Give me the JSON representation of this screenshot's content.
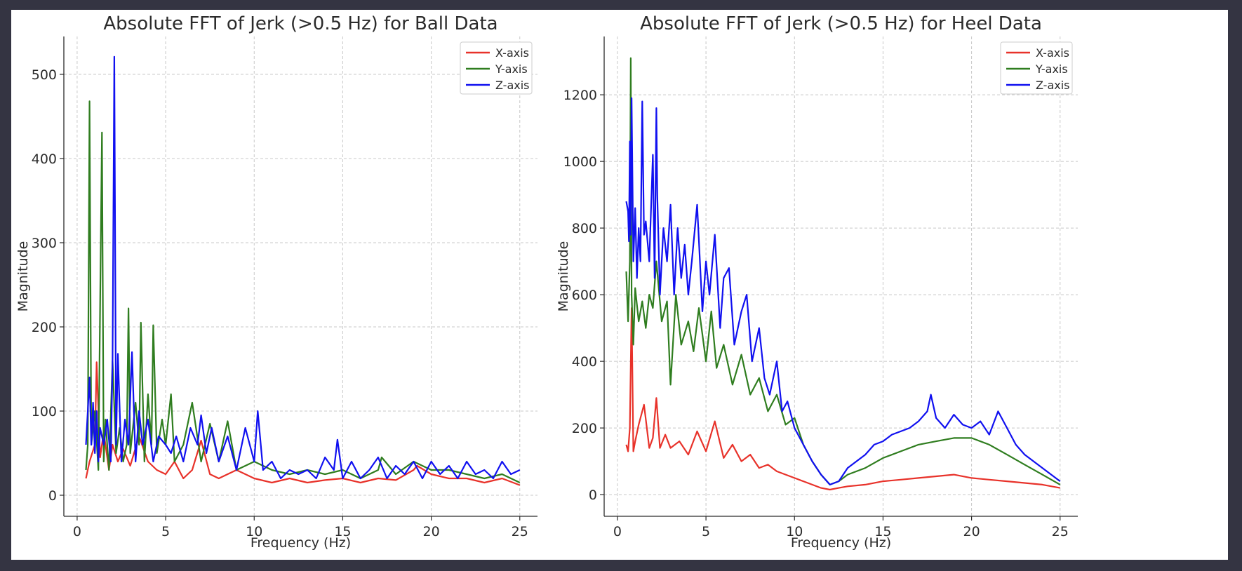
{
  "colors": {
    "x_axis": "#e8322a",
    "y_axis": "#2f7d1f",
    "z_axis": "#1010f0"
  },
  "chart_data": [
    {
      "type": "line",
      "title": "Absolute FFT of Jerk (>0.5 Hz) for Ball Data",
      "xlabel": "Frequency (Hz)",
      "ylabel": "Magnitude",
      "xlim": [
        -0.75,
        26.0
      ],
      "ylim": [
        -25,
        545
      ],
      "xticks": [
        0,
        5,
        10,
        15,
        20,
        25
      ],
      "yticks": [
        0,
        100,
        200,
        300,
        400,
        500
      ],
      "grid": true,
      "legend": "top-right",
      "series": [
        {
          "name": "X-axis",
          "color": "#e8322a",
          "x": [
            0.5,
            0.7,
            1.0,
            1.1,
            1.3,
            1.5,
            1.8,
            2.0,
            2.3,
            2.6,
            3.0,
            3.5,
            4.0,
            4.5,
            5.0,
            5.5,
            6.0,
            6.5,
            7.0,
            7.5,
            8.0,
            9.0,
            10.0,
            11.0,
            12.0,
            13.0,
            14.0,
            15.0,
            16.0,
            17.0,
            18.0,
            19.0,
            19.2,
            20.0,
            21.0,
            22.0,
            23.0,
            24.0,
            25.0
          ],
          "y": [
            20,
            40,
            60,
            158,
            45,
            75,
            30,
            60,
            40,
            55,
            35,
            70,
            40,
            30,
            25,
            40,
            20,
            30,
            65,
            25,
            20,
            30,
            20,
            15,
            20,
            15,
            18,
            20,
            15,
            20,
            18,
            30,
            35,
            25,
            20,
            20,
            15,
            20,
            12
          ]
        },
        {
          "name": "Y-axis",
          "color": "#2f7d1f",
          "x": [
            0.5,
            0.6,
            0.7,
            0.8,
            1.0,
            1.2,
            1.4,
            1.5,
            1.6,
            1.8,
            2.0,
            2.2,
            2.4,
            2.6,
            2.8,
            2.9,
            3.0,
            3.3,
            3.5,
            3.6,
            3.8,
            4.0,
            4.2,
            4.3,
            4.5,
            4.8,
            5.0,
            5.3,
            5.5,
            6.0,
            6.5,
            7.0,
            7.5,
            8.0,
            8.5,
            9.0,
            10.0,
            11.0,
            12.0,
            13.0,
            14.0,
            15.0,
            16.0,
            17.0,
            17.2,
            18.0,
            19.0,
            20.0,
            21.0,
            22.0,
            23.0,
            24.0,
            25.0
          ],
          "y": [
            30,
            60,
            468,
            60,
            100,
            30,
            431,
            40,
            90,
            30,
            160,
            50,
            80,
            40,
            60,
            222,
            50,
            110,
            60,
            205,
            40,
            120,
            60,
            202,
            50,
            90,
            60,
            120,
            40,
            60,
            110,
            40,
            85,
            40,
            88,
            30,
            40,
            30,
            25,
            30,
            25,
            30,
            20,
            30,
            45,
            25,
            40,
            30,
            30,
            25,
            20,
            25,
            15
          ]
        },
        {
          "name": "Z-axis",
          "color": "#1010f0",
          "x": [
            0.5,
            0.6,
            0.7,
            0.8,
            0.9,
            1.0,
            1.1,
            1.2,
            1.3,
            1.5,
            1.7,
            1.9,
            2.0,
            2.1,
            2.2,
            2.3,
            2.5,
            2.7,
            2.9,
            3.1,
            3.3,
            3.5,
            3.7,
            4.0,
            4.3,
            4.6,
            5.0,
            5.3,
            5.6,
            6.0,
            6.4,
            6.8,
            7.0,
            7.3,
            7.6,
            8.0,
            8.5,
            9.0,
            9.5,
            10.0,
            10.2,
            10.5,
            11.0,
            11.5,
            12.0,
            12.5,
            13.0,
            13.5,
            14.0,
            14.5,
            14.7,
            15.0,
            15.5,
            16.0,
            16.5,
            17.0,
            17.5,
            18.0,
            18.5,
            19.0,
            19.5,
            20.0,
            20.5,
            21.0,
            21.5,
            22.0,
            22.5,
            23.0,
            23.5,
            24.0,
            24.5,
            25.0
          ],
          "y": [
            60,
            100,
            140,
            60,
            110,
            50,
            100,
            40,
            80,
            60,
            90,
            40,
            160,
            521,
            60,
            168,
            40,
            90,
            60,
            170,
            40,
            100,
            60,
            90,
            40,
            70,
            60,
            50,
            70,
            40,
            80,
            60,
            95,
            50,
            80,
            40,
            70,
            30,
            80,
            40,
            100,
            30,
            40,
            20,
            30,
            25,
            30,
            20,
            45,
            30,
            66,
            20,
            40,
            20,
            30,
            45,
            20,
            35,
            25,
            40,
            20,
            40,
            25,
            35,
            20,
            40,
            25,
            30,
            20,
            40,
            25,
            30
          ]
        }
      ]
    },
    {
      "type": "line",
      "title": "Absolute FFT of Jerk (>0.5 Hz) for Heel Data",
      "xlabel": "Frequency (Hz)",
      "ylabel": "Magnitude",
      "xlim": [
        -0.75,
        26.0
      ],
      "ylim": [
        -65,
        1375
      ],
      "xticks": [
        0,
        5,
        10,
        15,
        20,
        25
      ],
      "yticks": [
        0,
        200,
        400,
        600,
        800,
        1000,
        1200
      ],
      "grid": true,
      "legend": "top-right",
      "series": [
        {
          "name": "X-axis",
          "color": "#e8322a",
          "x": [
            0.5,
            0.6,
            0.7,
            0.8,
            0.9,
            1.0,
            1.2,
            1.5,
            1.8,
            2.0,
            2.2,
            2.4,
            2.7,
            3.0,
            3.5,
            4.0,
            4.5,
            5.0,
            5.5,
            6.0,
            6.5,
            7.0,
            7.5,
            8.0,
            8.5,
            9.0,
            9.5,
            10.0,
            10.5,
            11.0,
            11.5,
            12.0,
            12.5,
            13.0,
            14.0,
            15.0,
            16.0,
            17.0,
            18.0,
            19.0,
            20.0,
            21.0,
            22.0,
            23.0,
            24.0,
            25.0
          ],
          "y": [
            150,
            130,
            200,
            560,
            130,
            160,
            210,
            270,
            140,
            170,
            290,
            140,
            180,
            140,
            160,
            120,
            190,
            130,
            220,
            110,
            150,
            100,
            120,
            80,
            90,
            70,
            60,
            50,
            40,
            30,
            20,
            15,
            20,
            25,
            30,
            40,
            45,
            50,
            55,
            60,
            50,
            45,
            40,
            35,
            30,
            20
          ]
        },
        {
          "name": "Y-axis",
          "color": "#2f7d1f",
          "x": [
            0.5,
            0.6,
            0.7,
            0.75,
            0.8,
            0.9,
            1.0,
            1.2,
            1.4,
            1.6,
            1.8,
            2.0,
            2.2,
            2.5,
            2.8,
            3.0,
            3.3,
            3.6,
            4.0,
            4.3,
            4.6,
            5.0,
            5.3,
            5.6,
            6.0,
            6.5,
            7.0,
            7.5,
            8.0,
            8.5,
            9.0,
            9.5,
            10.0,
            10.5,
            11.0,
            11.5,
            12.0,
            12.5,
            13.0,
            13.5,
            14.0,
            15.0,
            16.0,
            17.0,
            18.0,
            19.0,
            20.0,
            21.0,
            22.0,
            23.0,
            24.0,
            25.0
          ],
          "y": [
            670,
            520,
            700,
            1310,
            600,
            450,
            620,
            520,
            580,
            500,
            600,
            560,
            700,
            520,
            580,
            330,
            600,
            450,
            520,
            430,
            560,
            400,
            550,
            380,
            450,
            330,
            420,
            300,
            350,
            250,
            300,
            210,
            230,
            150,
            100,
            60,
            30,
            40,
            60,
            70,
            80,
            110,
            130,
            150,
            160,
            170,
            170,
            150,
            120,
            90,
            60,
            30
          ]
        },
        {
          "name": "Z-axis",
          "color": "#1010f0",
          "x": [
            0.5,
            0.6,
            0.65,
            0.7,
            0.75,
            0.8,
            0.9,
            1.0,
            1.1,
            1.2,
            1.3,
            1.4,
            1.5,
            1.6,
            1.8,
            2.0,
            2.1,
            2.2,
            2.25,
            2.4,
            2.6,
            2.8,
            3.0,
            3.2,
            3.4,
            3.6,
            3.8,
            4.0,
            4.2,
            4.5,
            4.8,
            5.0,
            5.2,
            5.5,
            5.8,
            6.0,
            6.3,
            6.6,
            7.0,
            7.3,
            7.6,
            8.0,
            8.3,
            8.6,
            9.0,
            9.3,
            9.6,
            10.0,
            10.5,
            11.0,
            11.5,
            12.0,
            12.5,
            13.0,
            13.5,
            14.0,
            14.5,
            15.0,
            15.5,
            16.0,
            16.5,
            17.0,
            17.5,
            17.7,
            18.0,
            18.5,
            19.0,
            19.5,
            20.0,
            20.5,
            21.0,
            21.5,
            22.0,
            22.5,
            23.0,
            23.5,
            24.0,
            24.5,
            25.0
          ],
          "y": [
            880,
            850,
            760,
            1060,
            780,
            1190,
            700,
            860,
            650,
            800,
            700,
            1180,
            780,
            820,
            700,
            1020,
            650,
            1160,
            900,
            600,
            800,
            700,
            870,
            600,
            800,
            650,
            750,
            600,
            700,
            870,
            550,
            700,
            600,
            780,
            500,
            650,
            680,
            450,
            550,
            600,
            400,
            500,
            350,
            300,
            400,
            250,
            280,
            200,
            150,
            100,
            60,
            30,
            40,
            80,
            100,
            120,
            150,
            160,
            180,
            190,
            200,
            220,
            250,
            300,
            230,
            200,
            240,
            210,
            200,
            220,
            180,
            250,
            200,
            150,
            120,
            100,
            80,
            60,
            40
          ]
        }
      ]
    }
  ]
}
